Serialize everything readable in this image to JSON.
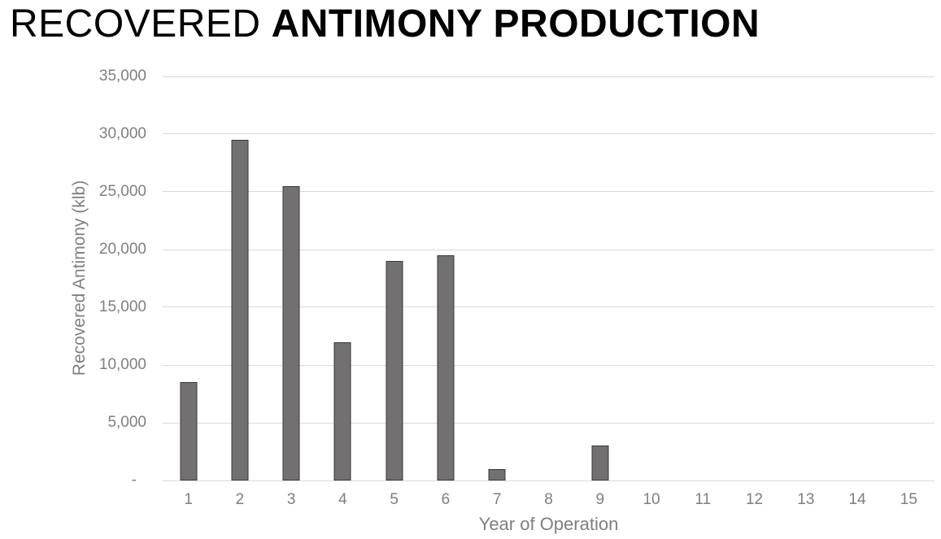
{
  "title": {
    "light": "RECOVERED",
    "bold": "ANTIMONY PRODUCTION"
  },
  "chart_data": {
    "type": "bar",
    "title": "RECOVERED ANTIMONY PRODUCTION",
    "categories": [
      "1",
      "2",
      "3",
      "4",
      "5",
      "6",
      "7",
      "8",
      "9",
      "10",
      "11",
      "12",
      "13",
      "14",
      "15"
    ],
    "values": [
      8500,
      29500,
      25500,
      12000,
      19000,
      19500,
      1000,
      0,
      3000,
      0,
      0,
      0,
      0,
      0,
      0
    ],
    "xlabel": "Year of Operation",
    "ylabel": "Recovered Antimony (klb)",
    "ylim": [
      0,
      35000
    ],
    "ytick_step": 5000,
    "yticks": [
      {
        "value": 35000,
        "label": "35,000"
      },
      {
        "value": 30000,
        "label": "30,000"
      },
      {
        "value": 25000,
        "label": "25,000"
      },
      {
        "value": 20000,
        "label": "20,000"
      },
      {
        "value": 15000,
        "label": "15,000"
      },
      {
        "value": 10000,
        "label": "10,000"
      },
      {
        "value": 5000,
        "label": "5,000"
      },
      {
        "value": 0,
        "label": "-"
      }
    ],
    "grid": "horizontal",
    "legend": "none",
    "colors": {
      "bar_fill": "#727070",
      "bar_border": "#3a3838",
      "gridline": "#d9d9d9",
      "axis_text": "#7f7f7f",
      "title_text": "#000000",
      "background": "#ffffff"
    }
  }
}
